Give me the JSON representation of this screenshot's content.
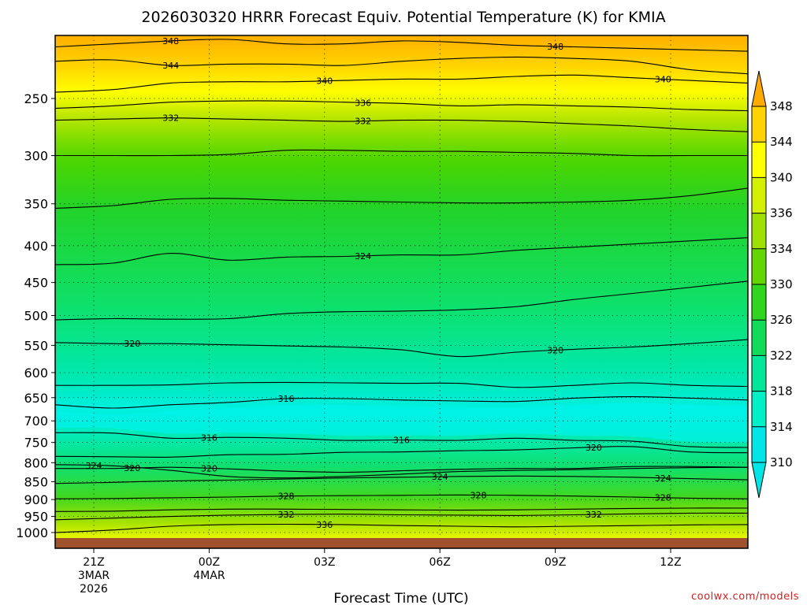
{
  "chart_data": {
    "type": "heatmap",
    "title": "2026030320 HRRR Forecast Equiv. Potential Temperature (K) for KMIA",
    "xlabel": "Forecast Time (UTC)",
    "ylabel": "",
    "y_axis": {
      "ticks": [
        250,
        300,
        350,
        400,
        450,
        500,
        550,
        600,
        650,
        700,
        750,
        800,
        850,
        900,
        950,
        1000
      ],
      "range": [
        1020,
        200
      ],
      "scale": "log-pressure"
    },
    "x_axis": {
      "range_hours": [
        -1,
        17
      ],
      "ticks": [
        {
          "hour": 0,
          "lines": [
            "21Z",
            "3MAR",
            "2026"
          ]
        },
        {
          "hour": 3,
          "lines": [
            "00Z",
            "4MAR"
          ]
        },
        {
          "hour": 6,
          "lines": [
            "03Z"
          ]
        },
        {
          "hour": 9,
          "lines": [
            "06Z"
          ]
        },
        {
          "hour": 12,
          "lines": [
            "09Z"
          ]
        },
        {
          "hour": 15,
          "lines": [
            "12Z"
          ]
        }
      ]
    },
    "colorbar": {
      "levels": [
        310,
        314,
        318,
        322,
        326,
        330,
        334,
        336,
        340,
        344,
        348
      ],
      "colors": [
        "#00e6e6",
        "#00f0c8",
        "#00e69a",
        "#10dc5a",
        "#30d520",
        "#64d500",
        "#a0e000",
        "#d2f000",
        "#ffff00",
        "#ffd200",
        "#ffaa00"
      ],
      "extend": "both"
    },
    "contour_profiles": [
      {
        "level": 348,
        "p": [
          212,
          210,
          208,
          207,
          210,
          210,
          208,
          209,
          211,
          212,
          213,
          214,
          215
        ],
        "label_hours": [
          2.0,
          12.0
        ]
      },
      {
        "level": 344,
        "p": [
          222,
          221,
          225,
          224,
          224,
          225,
          222,
          220,
          219,
          220,
          222,
          228,
          231
        ],
        "label_hours": [
          2.0
        ]
      },
      {
        "level": 340,
        "p": [
          245,
          243,
          238,
          237,
          237,
          236,
          235,
          235,
          233,
          232,
          234,
          236,
          238
        ],
        "label_hours": [
          6.0,
          14.8
        ]
      },
      {
        "level": 336,
        "p": [
          258,
          256,
          253,
          252,
          252,
          253,
          254,
          256,
          255,
          256,
          257,
          259,
          260
        ],
        "label_hours": [
          7.0
        ]
      },
      {
        "level": 332,
        "p": [
          268,
          267,
          266,
          267,
          268,
          269,
          268,
          268,
          269,
          271,
          273,
          276,
          278
        ],
        "label_hours": [
          2.0,
          7.0
        ]
      },
      {
        "level": 330,
        "p": [
          300,
          300,
          300,
          299,
          295,
          295,
          296,
          296,
          297,
          298,
          300,
          300,
          300
        ]
      },
      {
        "level": 326,
        "p": [
          355,
          352,
          345,
          344,
          346,
          347,
          348,
          349,
          349,
          348,
          346,
          341,
          333
        ]
      },
      {
        "level": 324,
        "p": [
          425,
          423,
          410,
          419,
          415,
          414,
          412,
          412,
          406,
          402,
          398,
          394,
          390
        ],
        "label_hours": [
          7.0
        ]
      },
      {
        "level": 322,
        "p": [
          507,
          505,
          506,
          505,
          497,
          494,
          493,
          491,
          486,
          475,
          466,
          457,
          448
        ]
      },
      {
        "level": 320,
        "p": [
          545,
          547,
          547,
          549,
          551,
          553,
          558,
          570,
          562,
          557,
          553,
          547,
          540
        ],
        "label_hours": [
          1.0,
          12.0
        ]
      },
      {
        "level": 318,
        "p": [
          625,
          625,
          624,
          620,
          619,
          620,
          621,
          621,
          629,
          625,
          620,
          625,
          627
        ]
      },
      {
        "level": 316,
        "p": [
          665,
          672,
          665,
          660,
          652,
          652,
          655,
          657,
          658,
          651,
          648,
          651,
          655
        ],
        "label_hours": [
          5.0
        ]
      },
      {
        "level": 316,
        "p": [
          727,
          728,
          740,
          738,
          740,
          745,
          744,
          745,
          740,
          745,
          747,
          760,
          762
        ],
        "label_hours": [
          3.0,
          8.0
        ]
      },
      {
        "level": 320,
        "p": [
          784,
          785,
          786,
          780,
          779,
          774,
          773,
          770,
          768,
          763,
          760,
          773,
          775
        ],
        "label_hours": [
          13.0
        ]
      },
      {
        "level": 320,
        "p": [
          815,
          815,
          812,
          816,
          822,
          825,
          821,
          817,
          815,
          815,
          810,
          810,
          812
        ],
        "label_hours": [
          1.0,
          3.0
        ]
      },
      {
        "level": 324,
        "p": [
          805,
          808,
          820,
          836,
          840,
          836,
          830,
          823,
          820,
          818,
          815,
          813,
          812
        ],
        "label_hours": [
          0.0
        ]
      },
      {
        "level": 324,
        "p": [
          855,
          852,
          848,
          846,
          843,
          840,
          838,
          836,
          835,
          836,
          838,
          842,
          845
        ],
        "label_hours": [
          9.0,
          14.8
        ]
      },
      {
        "level": 328,
        "p": [
          898,
          897,
          895,
          893,
          890,
          889,
          888,
          887,
          888,
          890,
          893,
          896,
          898
        ],
        "label_hours": [
          5.0,
          10.0,
          14.8
        ]
      },
      {
        "level": 330,
        "p": [
          935,
          934,
          930,
          928,
          928,
          929,
          930,
          931,
          930,
          928,
          926,
          925,
          925
        ]
      },
      {
        "level": 332,
        "p": [
          960,
          955,
          950,
          946,
          944,
          943,
          945,
          946,
          947,
          945,
          942,
          940,
          940
        ],
        "label_hours": [
          5.0,
          13.0
        ]
      },
      {
        "level": 336,
        "p": [
          1000,
          992,
          980,
          975,
          974,
          975,
          978,
          980,
          982,
          980,
          978,
          976,
          975
        ],
        "label_hours": [
          6.0
        ]
      }
    ],
    "sampling_hours": [
      -1,
      0.5,
      2,
      3.5,
      5,
      6.5,
      8,
      9.5,
      11,
      12.5,
      14,
      15.5,
      17
    ]
  },
  "credit": "coolwx.com/models"
}
